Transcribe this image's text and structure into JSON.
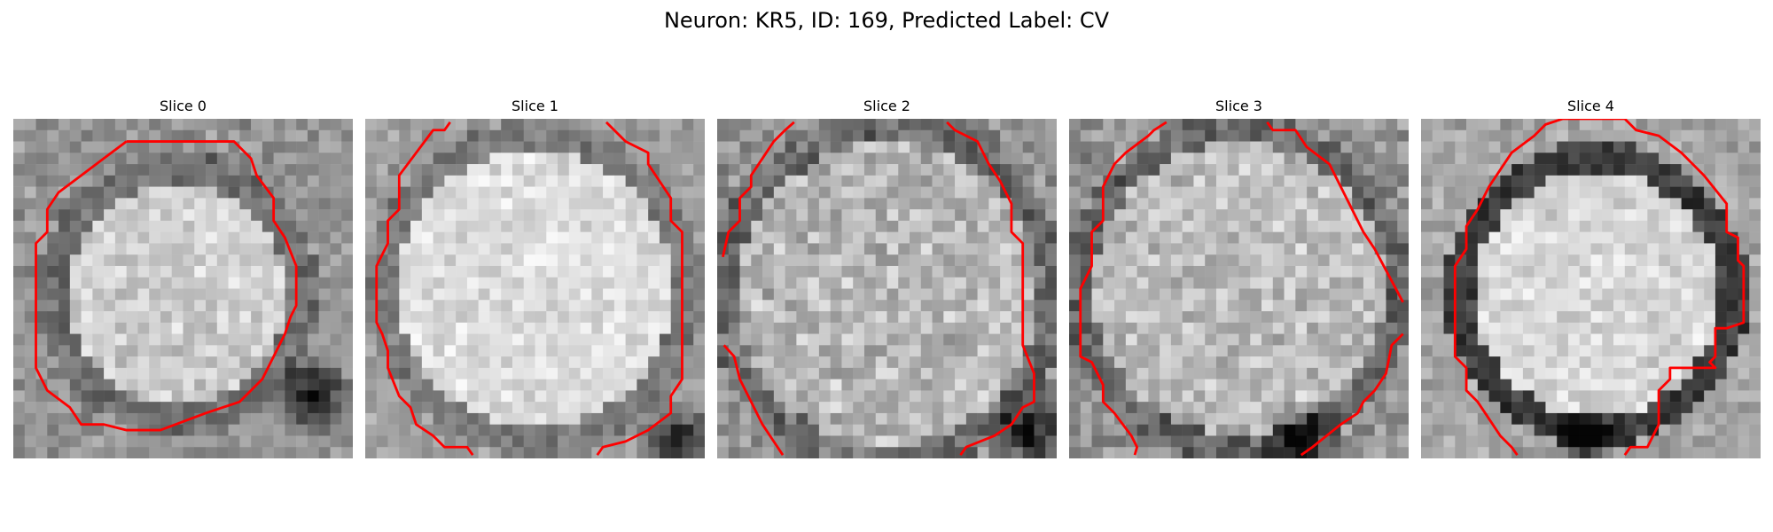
{
  "figure": {
    "title": "Neuron: KR5, ID: 169, Predicted Label: CV"
  },
  "panels": [
    {
      "title": "Slice 0"
    },
    {
      "title": "Slice 1"
    },
    {
      "title": "Slice 2"
    },
    {
      "title": "Slice 3"
    },
    {
      "title": "Slice 4"
    }
  ],
  "colors": {
    "contour": "#ff0000",
    "background": "#ffffff"
  },
  "colormap": "gray",
  "image_grid": "30x30 grayscale micrograph tiles",
  "contour_icon": "red-contour-outline"
}
